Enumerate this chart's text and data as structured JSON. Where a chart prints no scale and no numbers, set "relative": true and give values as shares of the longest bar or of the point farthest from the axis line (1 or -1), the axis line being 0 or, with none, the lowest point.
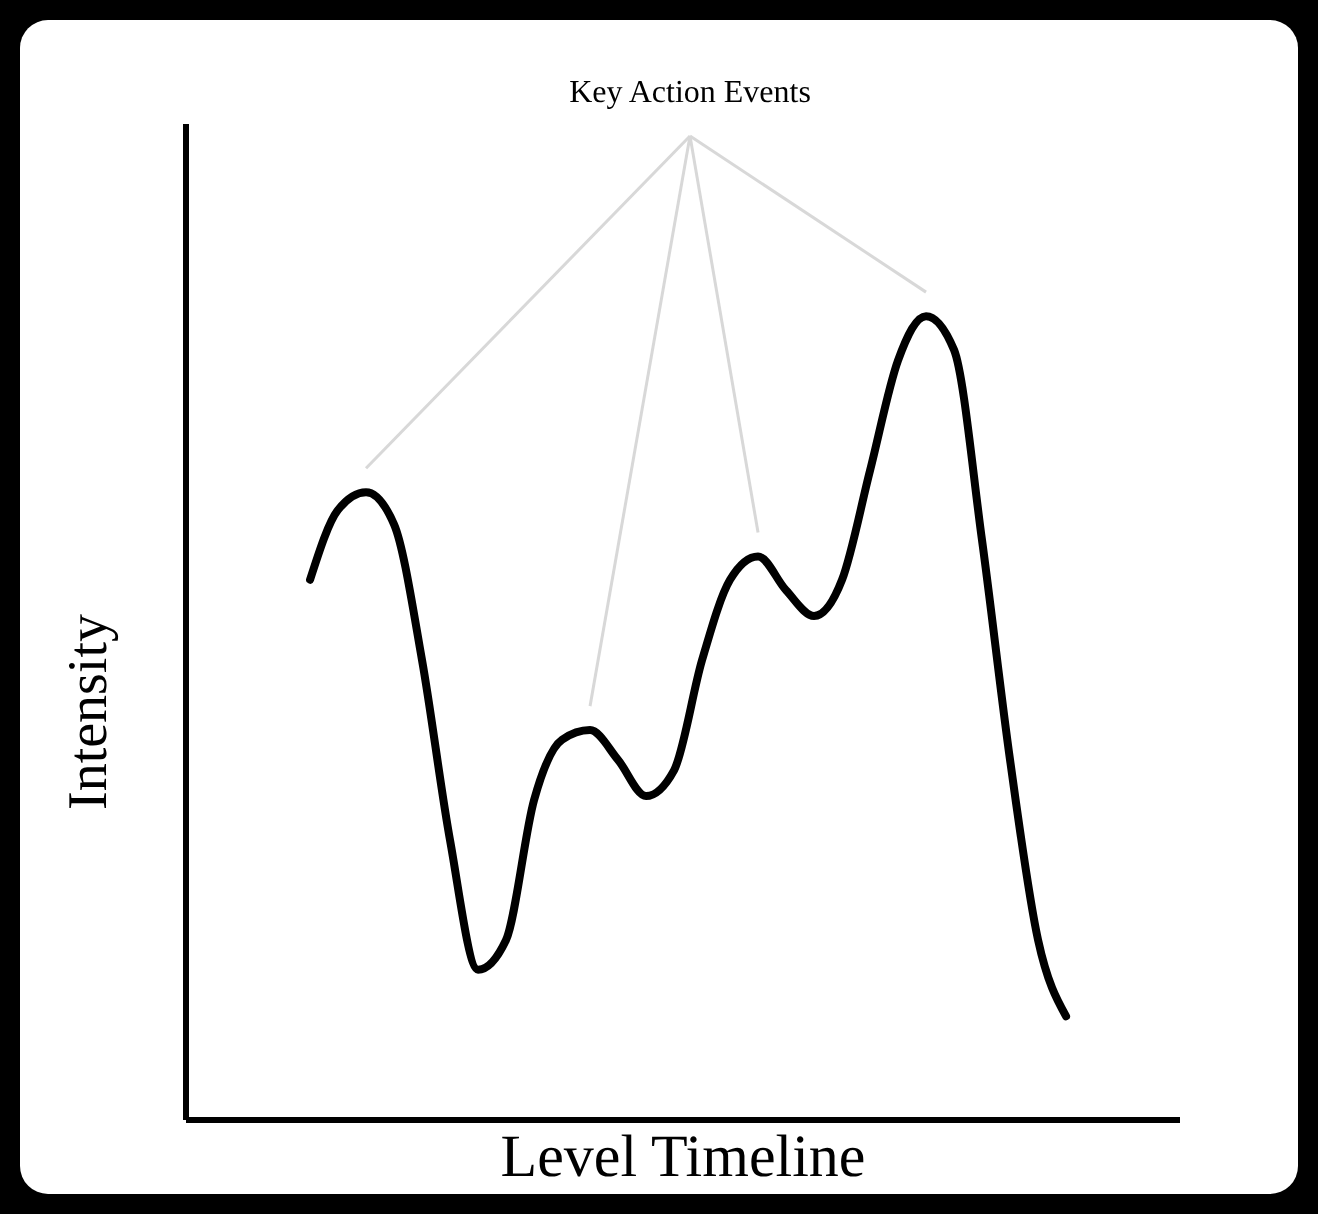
{
  "chart_data": {
    "type": "line",
    "xlabel": "Level Timeline",
    "ylabel": "Intensity",
    "annotations": [
      "Key Action Events"
    ],
    "relative": true,
    "grid": false,
    "legend": false,
    "marker": "none",
    "line_style": "solid",
    "categories": [
      null,
      null,
      null,
      null,
      null,
      null,
      null,
      null,
      null,
      null,
      null,
      null,
      null,
      null,
      null,
      null,
      null,
      null,
      null,
      null,
      null,
      null,
      null,
      null,
      null,
      null,
      null,
      null
    ],
    "series": [
      {
        "color": "#000000",
        "values": [
          0.672,
          0.759,
          0.781,
          0.741,
          0.572,
          0.348,
          0.187,
          0.224,
          0.398,
          0.473,
          0.485,
          0.448,
          0.403,
          0.435,
          0.572,
          0.672,
          0.701,
          0.659,
          0.627,
          0.672,
          0.808,
          0.945,
          1,
          0.958,
          0.721,
          0.448,
          0.224,
          0.129
        ]
      }
    ]
  }
}
